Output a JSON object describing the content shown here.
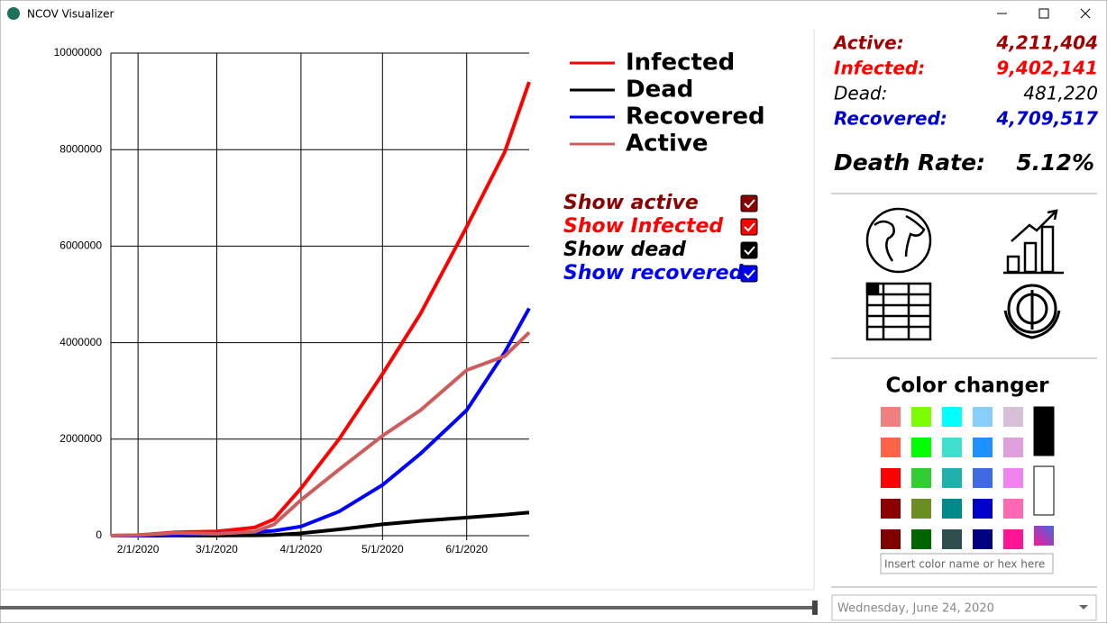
{
  "window": {
    "title": "NCOV Visualizer"
  },
  "chart_data": {
    "type": "line",
    "x": [
      "2020-01-22",
      "2020-02-01",
      "2020-02-15",
      "2020-03-01",
      "2020-03-15",
      "2020-03-22",
      "2020-04-01",
      "2020-04-15",
      "2020-05-01",
      "2020-05-15",
      "2020-06-01",
      "2020-06-15",
      "2020-06-24"
    ],
    "series": [
      {
        "name": "Infected",
        "color": "#ff0000",
        "values": [
          555,
          12000,
          69000,
          88000,
          170000,
          340000,
          980000,
          2000000,
          3350000,
          4600000,
          6400000,
          7950000,
          9402141
        ]
      },
      {
        "name": "Dead",
        "color": "#000000",
        "values": [
          17,
          260,
          1700,
          3000,
          6500,
          15000,
          50000,
          130000,
          235000,
          305000,
          375000,
          435000,
          481220
        ]
      },
      {
        "name": "Recovered",
        "color": "#0000ff",
        "values": [
          28,
          300,
          10000,
          45000,
          80000,
          100000,
          190000,
          500000,
          1050000,
          1700000,
          2600000,
          3800000,
          4709517
        ]
      },
      {
        "name": "Active",
        "color": "#cd5c5c",
        "values": [
          510,
          11400,
          57000,
          40000,
          85000,
          230000,
          740000,
          1370000,
          2070000,
          2600000,
          3430000,
          3720000,
          4211404
        ]
      }
    ],
    "xlim": [
      "2020-01-22",
      "2020-06-24"
    ],
    "xticks": [
      {
        "value": "2020-02-01",
        "label": "2/1/2020"
      },
      {
        "value": "2020-03-01",
        "label": "3/1/2020"
      },
      {
        "value": "2020-04-01",
        "label": "4/1/2020"
      },
      {
        "value": "2020-05-01",
        "label": "5/1/2020"
      },
      {
        "value": "2020-06-01",
        "label": "6/1/2020"
      }
    ],
    "ylim": [
      0,
      10000000
    ],
    "yticks": [
      0,
      2000000,
      4000000,
      6000000,
      8000000,
      10000000
    ],
    "grid": true
  },
  "toggles": [
    {
      "label": "Show active",
      "color": "#8b0000",
      "checked": true
    },
    {
      "label": "Show Infected",
      "color": "#ff0000",
      "checked": true
    },
    {
      "label": "Show dead",
      "color": "#000000",
      "checked": true
    },
    {
      "label": "Show recovered",
      "color": "#0000ff",
      "checked": true
    }
  ],
  "stats": [
    {
      "label": "Active:",
      "value": "4,211,404",
      "color": "#a00000"
    },
    {
      "label": "Infected:",
      "value": "9,402,141",
      "color": "#ff0000"
    },
    {
      "label": "Dead:",
      "value": "481,220",
      "color": "#000000"
    },
    {
      "label": "Recovered:",
      "value": "4,709,517",
      "color": "#0000cc"
    }
  ],
  "death_rate": {
    "label": "Death Rate:",
    "value": "5.12%"
  },
  "color_changer": {
    "title": "Color changer",
    "placeholder": "Insert color name or hex here"
  },
  "date_picker": {
    "value": "Wednesday, June 24, 2020"
  }
}
